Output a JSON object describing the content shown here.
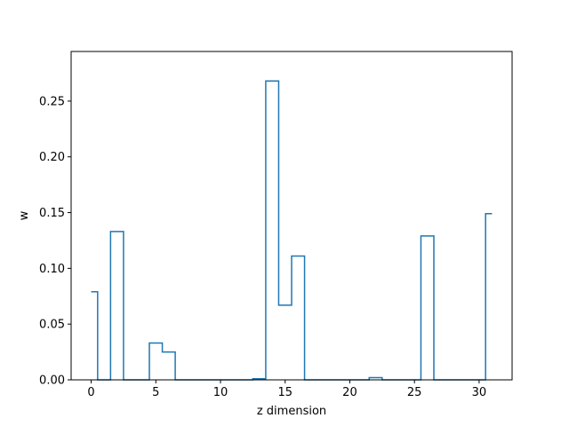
{
  "chart_data": {
    "type": "line",
    "drawstyle": "steps-mid",
    "xlabel": "z dimension",
    "ylabel": "w",
    "xlim": [
      -1.55,
      32.55
    ],
    "ylim": [
      0,
      0.2945
    ],
    "xticks": [
      0,
      5,
      10,
      15,
      20,
      25,
      30
    ],
    "xtick_labels": [
      "0",
      "5",
      "10",
      "15",
      "20",
      "25",
      "30"
    ],
    "yticks": [
      0,
      0.05,
      0.1,
      0.15,
      0.2,
      0.25
    ],
    "ytick_labels": [
      "0.00",
      "0.05",
      "0.10",
      "0.15",
      "0.20",
      "0.25"
    ],
    "grid": false,
    "line_color": "#1f77b4",
    "x": [
      0,
      1,
      2,
      3,
      4,
      5,
      6,
      7,
      8,
      9,
      10,
      11,
      12,
      13,
      14,
      15,
      16,
      17,
      18,
      19,
      20,
      21,
      22,
      23,
      24,
      25,
      26,
      27,
      28,
      29,
      30,
      31
    ],
    "y": [
      0.079,
      0,
      0.133,
      0,
      0,
      0.033,
      0.025,
      0,
      0,
      0,
      0,
      0,
      0,
      0.001,
      0.268,
      0.067,
      0.111,
      0,
      0,
      0,
      0,
      0,
      0.002,
      0,
      0,
      0,
      0.129,
      0,
      0,
      0,
      0,
      0.149
    ]
  }
}
